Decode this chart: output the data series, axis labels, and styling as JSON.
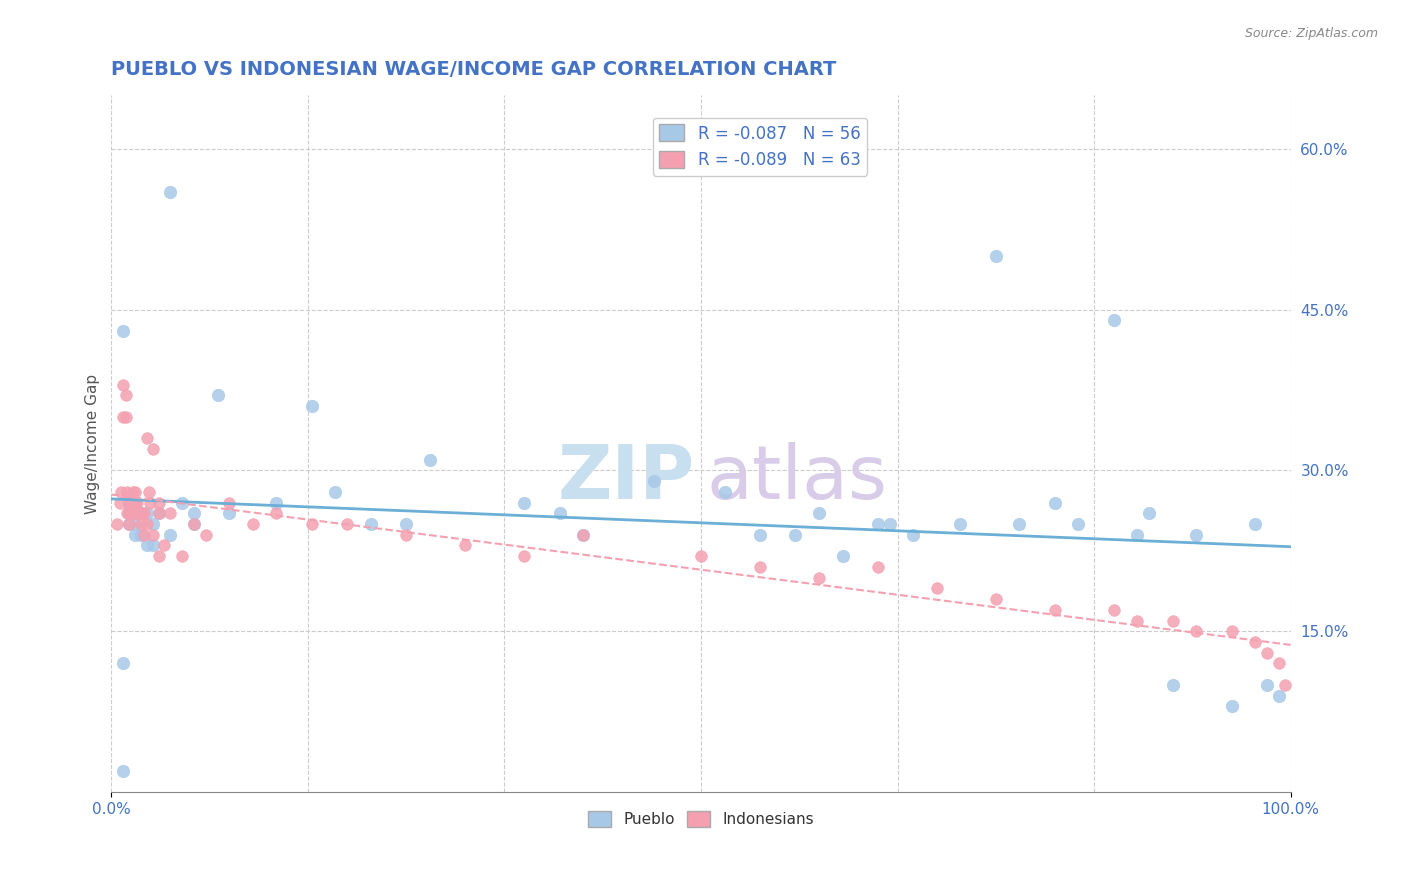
{
  "title": "PUEBLO VS INDONESIAN WAGE/INCOME GAP CORRELATION CHART",
  "source": "Source: ZipAtlas.com",
  "ylabel": "Wage/Income Gap",
  "right_yticks": [
    "60.0%",
    "45.0%",
    "30.0%",
    "15.0%"
  ],
  "right_ytick_vals": [
    0.6,
    0.45,
    0.3,
    0.15
  ],
  "legend1_label": "R = -0.087   N = 56",
  "legend2_label": "R = -0.089   N = 63",
  "pueblo_color": "#a8c8e8",
  "indonesian_color": "#f4a0b0",
  "pueblo_line_color": "#6baed6",
  "indonesian_line_color": "#f4a0b0",
  "pueblo_scatter_x": [
    0.01,
    0.01,
    0.01,
    0.015,
    0.015,
    0.015,
    0.02,
    0.02,
    0.02,
    0.02,
    0.025,
    0.025,
    0.03,
    0.03,
    0.035,
    0.035,
    0.04,
    0.05,
    0.05,
    0.06,
    0.07,
    0.07,
    0.09,
    0.1,
    0.14,
    0.17,
    0.19,
    0.22,
    0.25,
    0.27,
    0.35,
    0.38,
    0.4,
    0.46,
    0.52,
    0.55,
    0.58,
    0.6,
    0.62,
    0.65,
    0.66,
    0.68,
    0.72,
    0.75,
    0.77,
    0.8,
    0.82,
    0.85,
    0.87,
    0.88,
    0.9,
    0.92,
    0.95,
    0.97,
    0.98,
    0.99
  ],
  "pueblo_scatter_y": [
    0.02,
    0.12,
    0.43,
    0.26,
    0.27,
    0.25,
    0.27,
    0.25,
    0.24,
    0.26,
    0.26,
    0.24,
    0.26,
    0.23,
    0.25,
    0.23,
    0.26,
    0.56,
    0.24,
    0.27,
    0.26,
    0.25,
    0.37,
    0.26,
    0.27,
    0.36,
    0.28,
    0.25,
    0.25,
    0.31,
    0.27,
    0.26,
    0.24,
    0.29,
    0.28,
    0.24,
    0.24,
    0.26,
    0.22,
    0.25,
    0.25,
    0.24,
    0.25,
    0.5,
    0.25,
    0.27,
    0.25,
    0.44,
    0.24,
    0.26,
    0.1,
    0.24,
    0.08,
    0.25,
    0.1,
    0.09
  ],
  "indonesian_scatter_x": [
    0.005,
    0.007,
    0.008,
    0.01,
    0.01,
    0.012,
    0.012,
    0.013,
    0.013,
    0.015,
    0.015,
    0.015,
    0.018,
    0.018,
    0.018,
    0.02,
    0.02,
    0.02,
    0.022,
    0.022,
    0.025,
    0.025,
    0.028,
    0.028,
    0.03,
    0.03,
    0.032,
    0.033,
    0.035,
    0.035,
    0.04,
    0.04,
    0.04,
    0.045,
    0.05,
    0.06,
    0.07,
    0.08,
    0.1,
    0.12,
    0.14,
    0.17,
    0.2,
    0.25,
    0.3,
    0.35,
    0.4,
    0.5,
    0.55,
    0.6,
    0.65,
    0.7,
    0.75,
    0.8,
    0.85,
    0.87,
    0.9,
    0.92,
    0.95,
    0.97,
    0.98,
    0.99,
    0.995
  ],
  "indonesian_scatter_y": [
    0.25,
    0.27,
    0.28,
    0.35,
    0.38,
    0.37,
    0.35,
    0.28,
    0.26,
    0.27,
    0.26,
    0.25,
    0.28,
    0.27,
    0.26,
    0.28,
    0.27,
    0.26,
    0.26,
    0.27,
    0.25,
    0.26,
    0.26,
    0.24,
    0.25,
    0.33,
    0.28,
    0.27,
    0.32,
    0.24,
    0.27,
    0.26,
    0.22,
    0.23,
    0.26,
    0.22,
    0.25,
    0.24,
    0.27,
    0.25,
    0.26,
    0.25,
    0.25,
    0.24,
    0.23,
    0.22,
    0.24,
    0.22,
    0.21,
    0.2,
    0.21,
    0.19,
    0.18,
    0.17,
    0.17,
    0.16,
    0.16,
    0.15,
    0.15,
    0.14,
    0.13,
    0.12,
    0.1
  ],
  "vgrid_x": [
    0.0,
    0.1667,
    0.3333,
    0.5,
    0.6667,
    0.8333,
    1.0
  ],
  "xlim": [
    0.0,
    1.0
  ],
  "ylim": [
    0.0,
    0.65
  ]
}
